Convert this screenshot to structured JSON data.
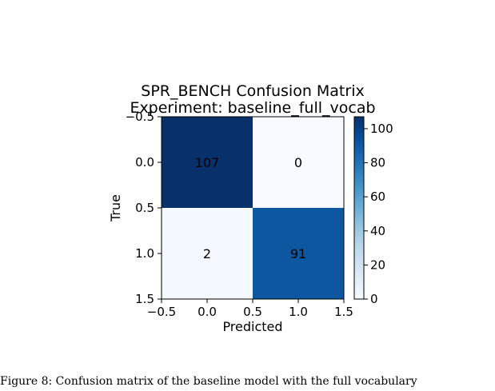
{
  "caption": "Figure 8: Confusion matrix of the baseline model with the full vocabulary",
  "chart_data": {
    "type": "heatmap",
    "title": "SPR_BENCH Confusion Matrix",
    "subtitle": "Experiment: baseline_full_vocab",
    "xlabel": "Predicted",
    "ylabel": "True",
    "x_ticks": [
      "−0.5",
      "0.0",
      "0.5",
      "1.0",
      "1.5"
    ],
    "y_ticks": [
      "−0.5",
      "0.0",
      "0.5",
      "1.0",
      "1.5"
    ],
    "matrix": [
      [
        107,
        0
      ],
      [
        2,
        91
      ]
    ],
    "cell_labels": [
      [
        "107",
        "0"
      ],
      [
        "2",
        "91"
      ]
    ],
    "colormap": "Blues",
    "colorbar": {
      "vmin": 0,
      "vmax": 107,
      "ticks": [
        "0",
        "20",
        "40",
        "60",
        "80",
        "100"
      ]
    }
  }
}
